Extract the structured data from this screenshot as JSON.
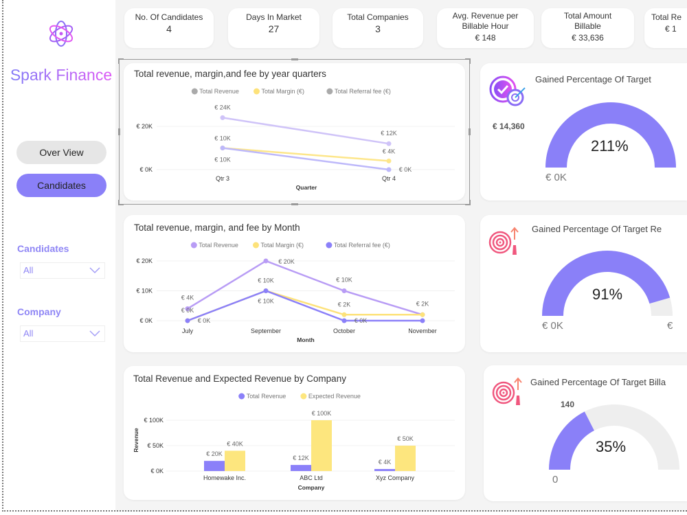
{
  "brand": {
    "name": "Spark Finance",
    "logo_icon": "flower-swirl-logo"
  },
  "nav": [
    {
      "label": "Over View",
      "active": false
    },
    {
      "label": "Candidates",
      "active": true
    }
  ],
  "filters": [
    {
      "label": "Candidates",
      "value": "All"
    },
    {
      "label": "Company",
      "value": "All"
    }
  ],
  "kpis": [
    {
      "title": "No. Of Candidates",
      "value": "4"
    },
    {
      "title": "Days In Market",
      "value": "27"
    },
    {
      "title": "Total Companies",
      "value": "3"
    },
    {
      "title": "Avg. Revenue per Billable Hour",
      "value": "€ 148"
    },
    {
      "title": "Total Amount Billable",
      "value": "€ 33,636"
    },
    {
      "title": "Total Re",
      "value": "€ 1"
    }
  ],
  "colors": {
    "accent": "#8a80f8",
    "revenue": "#b89cf5",
    "margin": "#fde27a",
    "referral": "#8b80f9",
    "gauge_track": "#eeeeee"
  },
  "chart_data": [
    {
      "type": "line",
      "title": "Total revenue, margin,and fee by year quarters",
      "xlabel": "Quarter",
      "categories": [
        "Qtr 3",
        "Qtr 4"
      ],
      "yticks": [
        "€ 0K",
        "€ 20K"
      ],
      "ylim": [
        0,
        20000
      ],
      "legend": "top-center",
      "series": [
        {
          "name": "Total Revenue",
          "values": [
            24000,
            12000
          ],
          "labels": [
            "€ 24K",
            "€ 12K"
          ],
          "color": "#cfc3f8",
          "legend_color": "#aaaaaa"
        },
        {
          "name": "Total Margin (€)",
          "values": [
            10000,
            4000
          ],
          "labels": [
            "€ 10K",
            "€ 4K"
          ],
          "color": "#fde68a",
          "legend_color": "#fde27a"
        },
        {
          "name": "Total Referral fee (€)",
          "values": [
            10000,
            0
          ],
          "labels": [
            "€ 10K",
            "€ 0K"
          ],
          "color": "#bdb8fa",
          "legend_color": "#aaaaaa"
        }
      ]
    },
    {
      "type": "line",
      "title": "Total revenue, margin, and fee by Month",
      "xlabel": "Month",
      "categories": [
        "July",
        "September",
        "October",
        "November"
      ],
      "yticks": [
        "€ 0K",
        "€ 10K",
        "€ 20K"
      ],
      "ylim": [
        0,
        20000
      ],
      "legend": "top-center",
      "series": [
        {
          "name": "Total Revenue",
          "values": [
            4000,
            20000,
            10000,
            2000
          ],
          "labels": [
            "€ 4K",
            "€ 20K",
            "€ 10K",
            "€ 2K"
          ],
          "color": "#b89cf5",
          "legend_color": "#b89cf5"
        },
        {
          "name": "Total Margin (€)",
          "values": [
            0,
            10000,
            2000,
            2000
          ],
          "labels": [
            "€ 0K",
            "€ 10K",
            "€ 2K",
            ""
          ],
          "color": "#fde27a",
          "legend_color": "#fde27a"
        },
        {
          "name": "Total Referral fee (€)",
          "values": [
            0,
            10000,
            0,
            0
          ],
          "labels": [
            "€ 0K",
            "€ 10K",
            "€ 0K",
            ""
          ],
          "color": "#8b80f9",
          "legend_color": "#8b80f9"
        }
      ]
    },
    {
      "type": "bar",
      "title": "Total Revenue and Expected Revenue by Company",
      "xlabel": "Company",
      "ylabel": "Revenue",
      "categories": [
        "Homewake Inc.",
        "ABC Ltd",
        "Xyz Company"
      ],
      "yticks": [
        "€ 0K",
        "€ 50K",
        "€ 100K"
      ],
      "ylim": [
        0,
        100000
      ],
      "legend": "top-center",
      "series": [
        {
          "name": "Total Revenue",
          "values": [
            20000,
            12000,
            4000
          ],
          "labels": [
            "€ 20K",
            "€ 12K",
            "€ 4K"
          ],
          "color": "#8b80f9"
        },
        {
          "name": "Expected Revenue",
          "values": [
            40000,
            100000,
            50000
          ],
          "labels": [
            "€ 40K",
            "€ 100K",
            "€ 50K"
          ],
          "color": "#fde67e"
        }
      ]
    }
  ],
  "gauges": [
    {
      "title": "Gained Percentage Of Target",
      "value_text": "211%",
      "fill": 1.0,
      "min_label": "€ 0K",
      "target_label": "€ 14,360",
      "icon": "check-target-icon"
    },
    {
      "title": "Gained Percentage Of Target Re",
      "value_text": "91%",
      "fill": 0.91,
      "min_label": "€ 0K",
      "max_label": "€",
      "icon": "dart-target-icon"
    },
    {
      "title": "Gained Percentage Of Target Billa",
      "value_text": "35%",
      "fill": 0.35,
      "min_label": "0",
      "target_label": "140",
      "icon": "dart-target-icon"
    }
  ]
}
